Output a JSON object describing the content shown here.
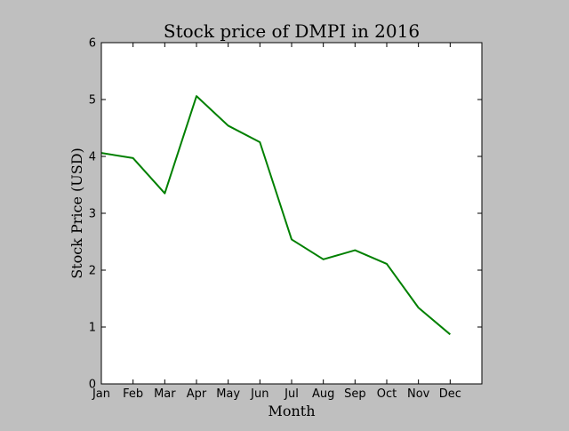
{
  "chart_data": {
    "type": "line",
    "title": "Stock price of DMPI in 2016",
    "xlabel": "Month",
    "ylabel": "Stock Price (USD)",
    "categories": [
      "Jan",
      "Feb",
      "Mar",
      "Apr",
      "May",
      "Jun",
      "Jul",
      "Aug",
      "Sep",
      "Oct",
      "Nov",
      "Dec"
    ],
    "xlim": [
      0,
      12
    ],
    "ylim": [
      0,
      6
    ],
    "yticks": [
      "0",
      "1",
      "2",
      "3",
      "4",
      "5",
      "6"
    ],
    "grid": false,
    "series": [
      {
        "name": "DMPI",
        "color": "#008000",
        "values": [
          4.06,
          3.97,
          3.35,
          5.06,
          4.54,
          4.25,
          2.54,
          2.19,
          2.35,
          2.11,
          1.34,
          0.87
        ]
      }
    ]
  }
}
